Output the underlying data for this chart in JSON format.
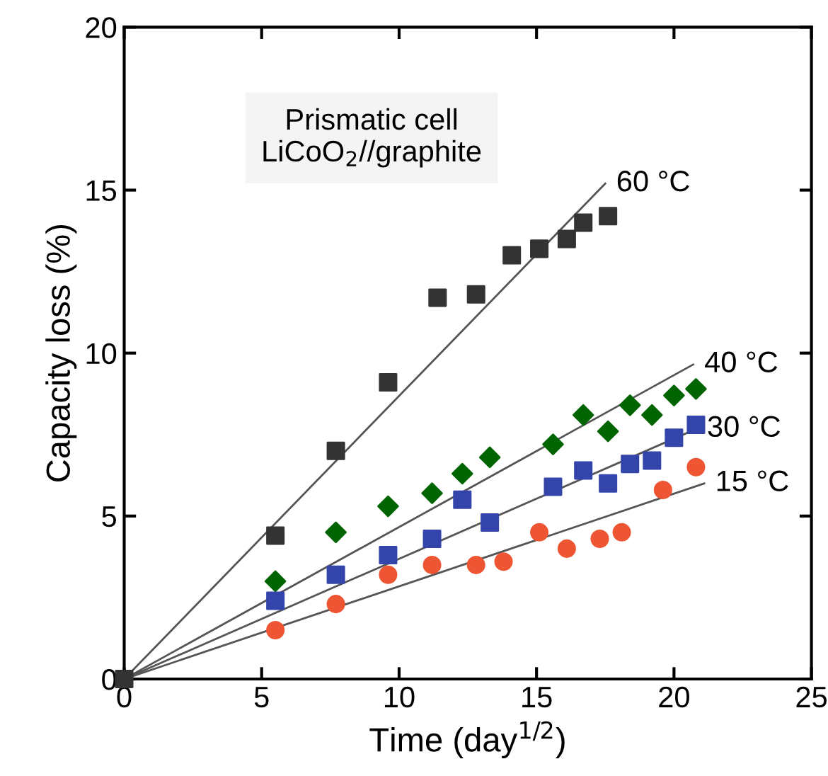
{
  "chart_data": {
    "type": "scatter",
    "xlabel": "Time (day$^{1/2}$)",
    "ylabel": "Capacity loss (%)",
    "xlim": [
      0,
      25
    ],
    "ylim": [
      0,
      20
    ],
    "xticks": [
      0,
      5,
      10,
      15,
      20,
      25
    ],
    "yticks": [
      0,
      5,
      10,
      15,
      20
    ],
    "grid": false,
    "legend": false,
    "annotations": [
      "Prismatic cell\nLiCoO$_{2}$//graphite"
    ],
    "series": [
      {
        "type": "line",
        "name": "60 °C",
        "color": "#555555",
        "x": [
          0,
          17.5
        ],
        "values": [
          0,
          15.2
        ],
        "marker": "none"
      },
      {
        "type": "line",
        "name": "40 °C",
        "color": "#555555",
        "x": [
          0,
          20.7
        ],
        "values": [
          0,
          9.65
        ],
        "marker": "none"
      },
      {
        "type": "line",
        "name": "30 °C",
        "color": "#555555",
        "x": [
          0,
          20.8
        ],
        "values": [
          0,
          7.67
        ],
        "marker": "none"
      },
      {
        "type": "line",
        "name": "15 °C",
        "color": "#555555",
        "x": [
          0,
          21.1
        ],
        "values": [
          0,
          6.0
        ],
        "marker": "none"
      },
      {
        "color": "#333333",
        "marker": "square",
        "x": [
          0,
          5.5,
          7.7,
          9.6,
          11.4,
          12.8,
          14.1,
          15.1,
          16.1,
          16.7,
          17.6
        ],
        "values": [
          0,
          4.4,
          7.0,
          9.1,
          11.7,
          11.8,
          13.0,
          13.2,
          13.5,
          14.0,
          14.2
        ]
      },
      {
        "color": "#006400",
        "marker": "diamond",
        "x": [
          5.5,
          7.7,
          9.6,
          11.2,
          12.3,
          13.3,
          15.6,
          16.7,
          17.6,
          18.4,
          19.2,
          20.0,
          20.8
        ],
        "values": [
          3.0,
          4.5,
          5.3,
          5.7,
          6.3,
          6.8,
          7.2,
          8.1,
          7.6,
          8.4,
          8.1,
          8.7,
          8.9
        ]
      },
      {
        "color": "#3344aa",
        "marker": "square",
        "x": [
          5.5,
          7.7,
          9.6,
          11.2,
          12.3,
          13.3,
          15.6,
          16.7,
          17.6,
          18.4,
          19.2,
          20.0,
          20.8
        ],
        "values": [
          2.4,
          3.2,
          3.8,
          4.3,
          5.5,
          4.8,
          5.9,
          6.4,
          6.0,
          6.6,
          6.7,
          7.4,
          7.8
        ]
      },
      {
        "color": "#ee5533",
        "marker": "circle",
        "x": [
          5.5,
          7.7,
          9.6,
          11.2,
          12.8,
          13.8,
          15.1,
          16.1,
          17.3,
          18.1,
          19.6,
          20.8
        ],
        "values": [
          1.5,
          2.3,
          3.2,
          3.5,
          3.5,
          3.6,
          4.5,
          4.0,
          4.3,
          4.5,
          5.8,
          6.5
        ]
      }
    ]
  }
}
